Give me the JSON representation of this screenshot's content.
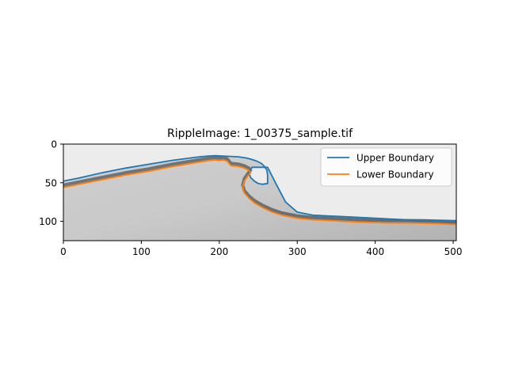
{
  "chart_data": {
    "type": "line",
    "title": "RippleImage: 1_00375_sample.tif",
    "xlabel": "",
    "ylabel": "",
    "xlim": [
      0,
      504
    ],
    "ylim": [
      125,
      0
    ],
    "y_inverted": true,
    "xticks": [
      0,
      100,
      200,
      300,
      400,
      500
    ],
    "yticks": [
      0,
      50,
      100
    ],
    "legend_position": "upper-right",
    "grid": false,
    "background": "grayscale ripple image",
    "series": [
      {
        "name": "Upper Boundary",
        "color": "#1f77b4",
        "x": [
          0,
          20,
          50,
          80,
          110,
          140,
          170,
          185,
          195,
          205,
          215,
          225,
          235,
          242,
          248,
          254,
          258,
          261,
          262,
          262,
          255,
          250,
          245,
          240,
          238,
          242,
          250,
          262,
          272,
          285,
          300,
          320,
          340,
          360,
          380,
          400,
          420,
          440,
          460,
          480,
          500,
          504
        ],
        "y": [
          48,
          44,
          37,
          31,
          26,
          21,
          17,
          15.5,
          15,
          15.5,
          16,
          16.5,
          18,
          20,
          22,
          25,
          29,
          34,
          40,
          51,
          52,
          51,
          48,
          43,
          37,
          30,
          30,
          30,
          50,
          75,
          88,
          92,
          93,
          94,
          95,
          96,
          97,
          98,
          98,
          98.5,
          99,
          99
        ]
      },
      {
        "name": "Lower Boundary",
        "color": "#ff7f0e",
        "x": [
          0,
          20,
          50,
          80,
          110,
          140,
          170,
          185,
          195,
          200,
          205,
          210,
          215,
          225,
          232,
          238,
          240,
          236,
          232,
          230,
          232,
          238,
          245,
          255,
          268,
          280,
          300,
          320,
          340,
          360,
          380,
          400,
          420,
          440,
          460,
          480,
          500,
          504
        ],
        "y": [
          56,
          52,
          46,
          40,
          35,
          29,
          24,
          21.5,
          20.5,
          21,
          20.5,
          22,
          28,
          29,
          31,
          34,
          37,
          42,
          48,
          56,
          63,
          70,
          76,
          82,
          88,
          92,
          96,
          98,
          99,
          100,
          101,
          101.5,
          102,
          102,
          102.5,
          103,
          104,
          104
        ]
      }
    ]
  }
}
